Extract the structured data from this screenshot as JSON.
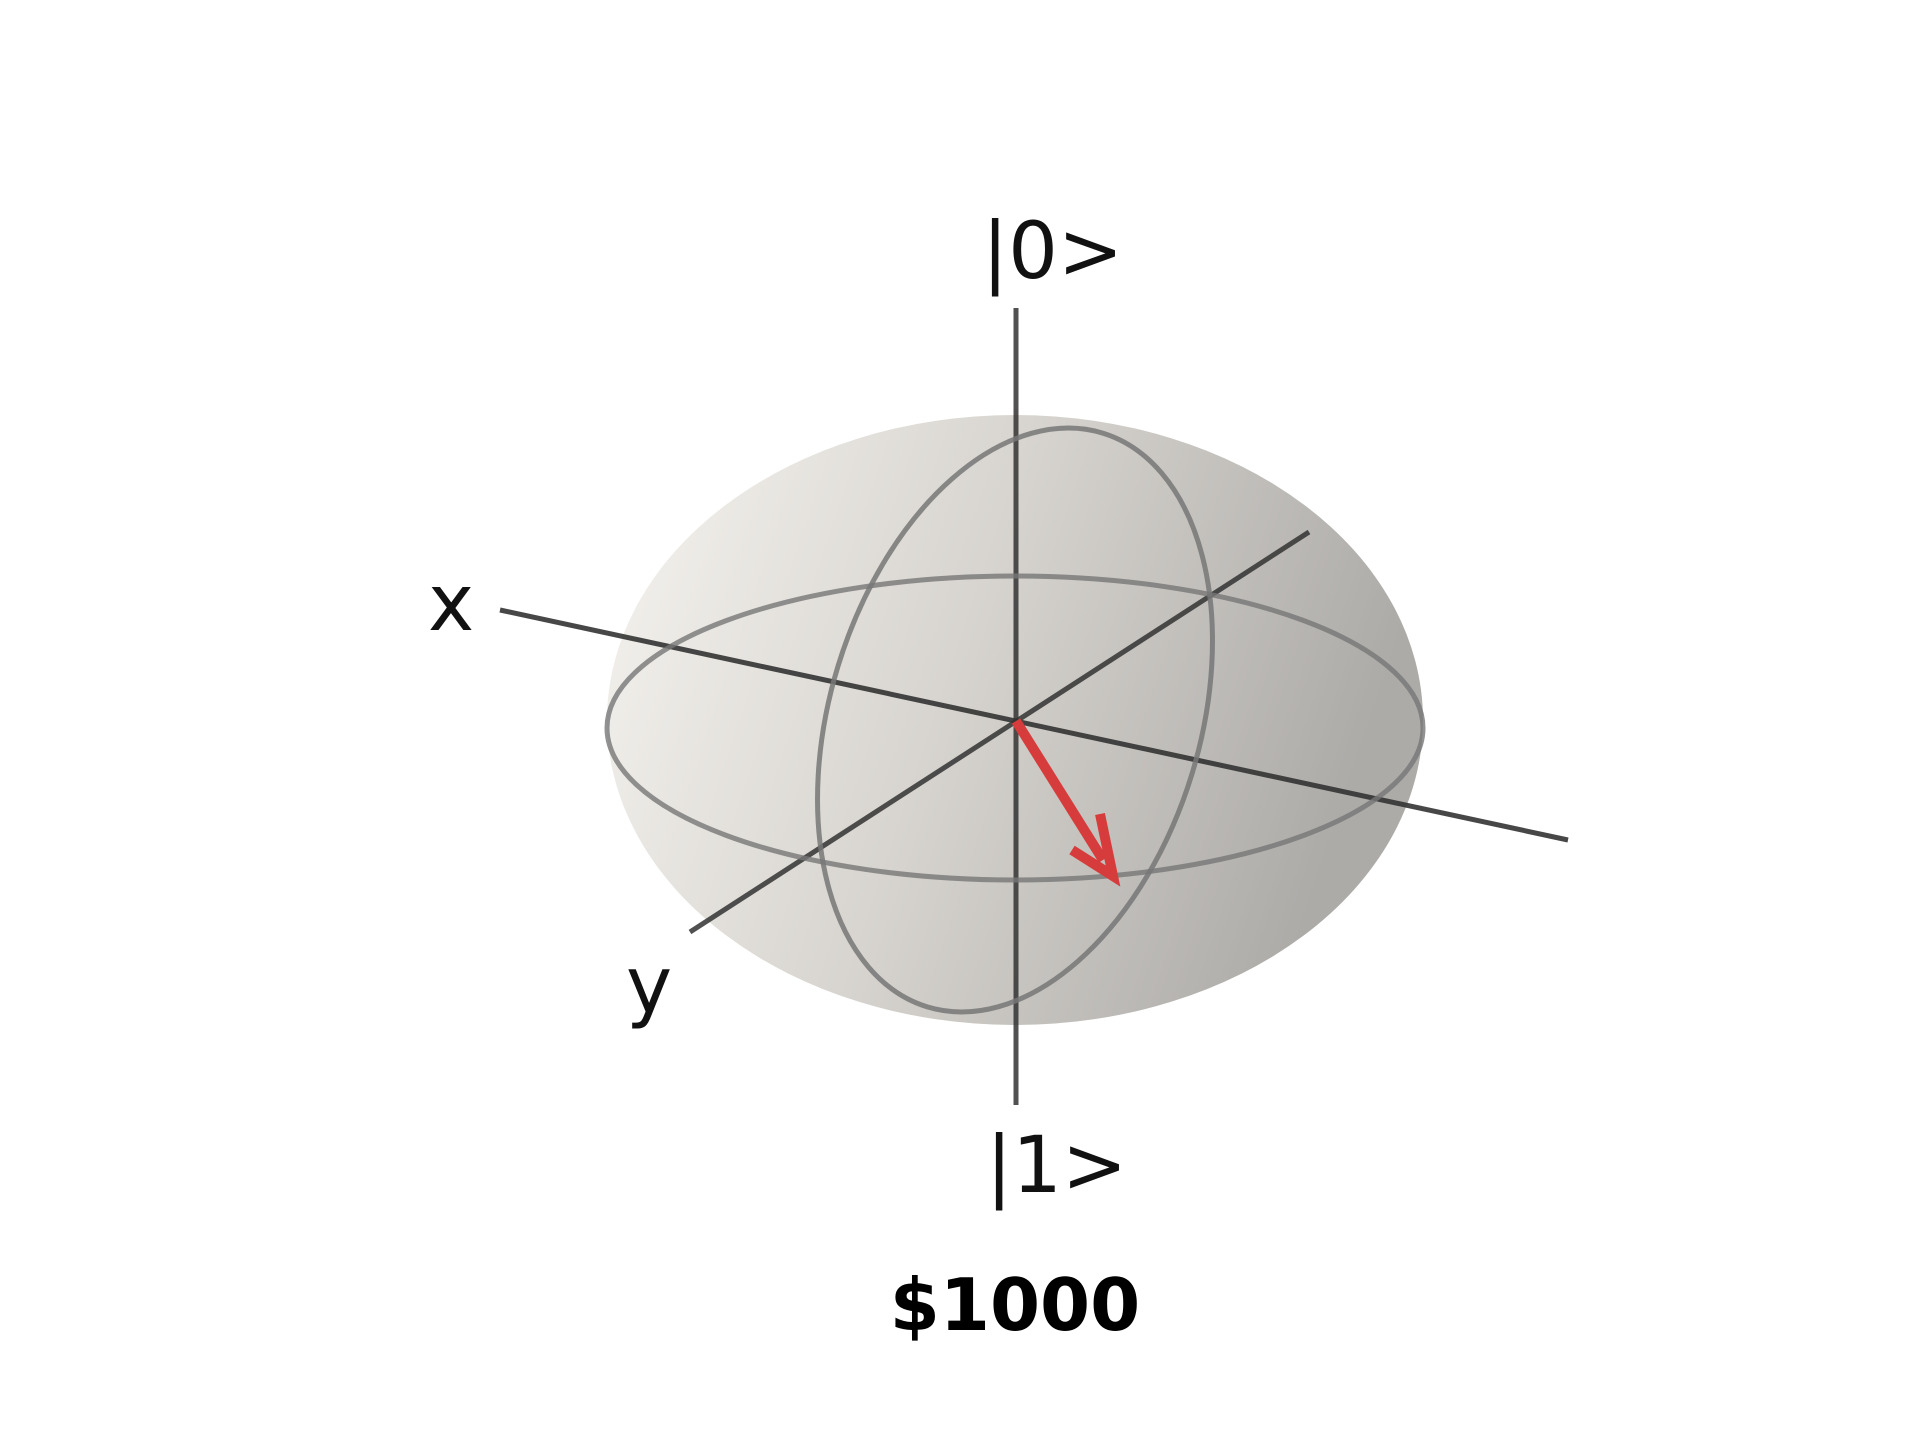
{
  "diagram": {
    "type": "bloch-sphere",
    "labels": {
      "top": "|0>",
      "bottom": "|1>",
      "x": "x",
      "y": "y"
    },
    "caption": "$1000",
    "colors": {
      "state_vector": "#d63c3c",
      "axes": "#333333",
      "circles": "#777777",
      "sphere_light": "#f6f4f0",
      "sphere_dark": "#adaba8"
    }
  }
}
